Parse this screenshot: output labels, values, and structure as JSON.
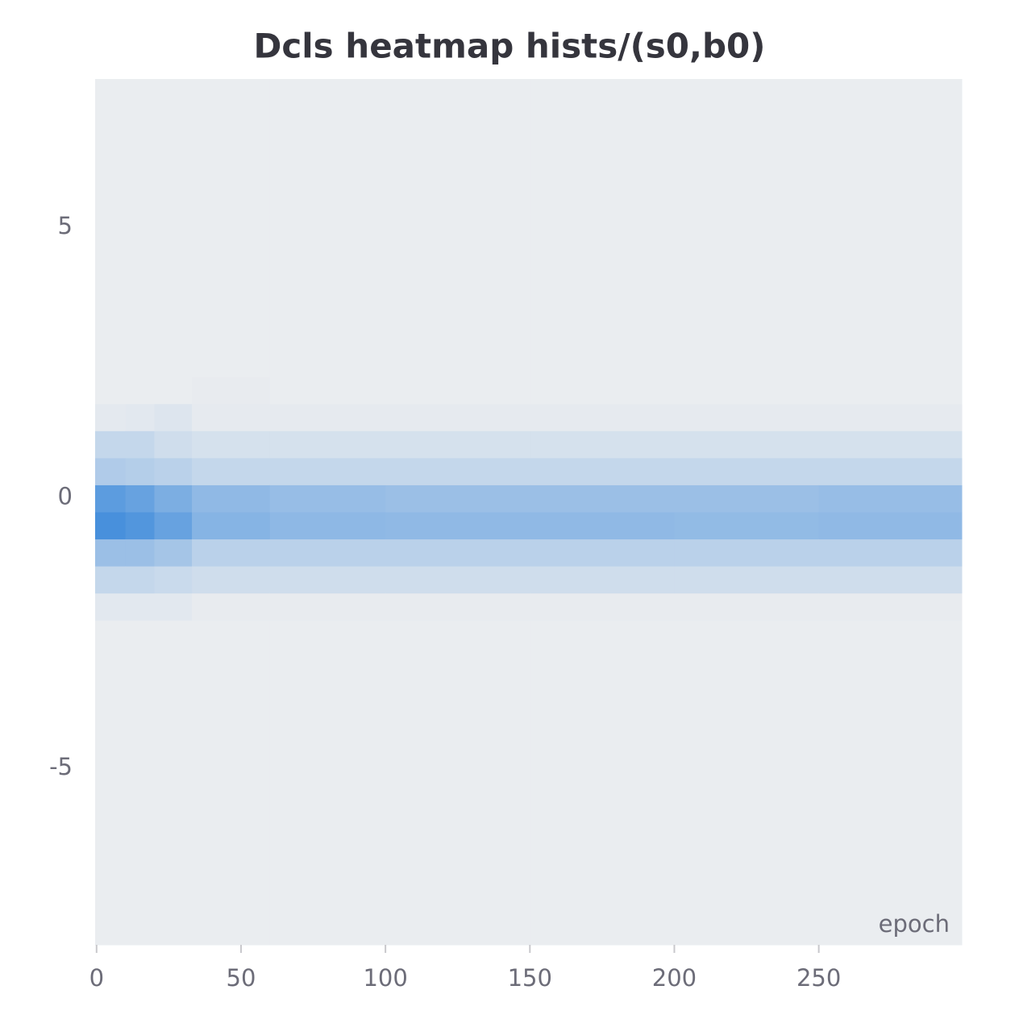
{
  "chart_data": {
    "type": "heatmap",
    "title": "Dcls heatmap hists/(s0,b0)",
    "x_label": "epoch",
    "x_bins": [
      -0.5,
      10,
      20,
      33,
      60,
      100,
      150,
      200,
      250,
      299.5
    ],
    "y_bins": [
      -8.26,
      -7.76,
      -7.26,
      -6.76,
      -6.26,
      -5.76,
      -5.26,
      -4.76,
      -4.26,
      -3.76,
      -3.26,
      -2.76,
      -2.26,
      -1.76,
      -1.26,
      -0.76,
      -0.26,
      0.24,
      0.74,
      1.24,
      1.74,
      2.24,
      2.74,
      3.24,
      3.74,
      4.24,
      4.74,
      5.24,
      5.74,
      6.24,
      6.74,
      7.24,
      7.74
    ],
    "values": [
      [
        0.02,
        0.02,
        0.02,
        0.02,
        0.02,
        0.02,
        0.02,
        0.02,
        0.02,
        0.02,
        0.02,
        0.02,
        0.06,
        0.2,
        0.4,
        0.8,
        0.7,
        0.3,
        0.2,
        0.05,
        0.02,
        0.02,
        0.02,
        0.02,
        0.02,
        0.02,
        0.02,
        0.02,
        0.02,
        0.02,
        0.02,
        0.02
      ],
      [
        0.02,
        0.02,
        0.02,
        0.02,
        0.02,
        0.02,
        0.02,
        0.02,
        0.02,
        0.02,
        0.02,
        0.02,
        0.06,
        0.2,
        0.4,
        0.75,
        0.65,
        0.28,
        0.2,
        0.06,
        0.02,
        0.02,
        0.02,
        0.02,
        0.02,
        0.02,
        0.02,
        0.02,
        0.02,
        0.02,
        0.02,
        0.02
      ],
      [
        0.02,
        0.02,
        0.02,
        0.02,
        0.02,
        0.02,
        0.02,
        0.02,
        0.02,
        0.02,
        0.02,
        0.02,
        0.06,
        0.18,
        0.35,
        0.65,
        0.55,
        0.25,
        0.15,
        0.08,
        0.02,
        0.02,
        0.02,
        0.02,
        0.02,
        0.02,
        0.02,
        0.02,
        0.02,
        0.02,
        0.02,
        0.02
      ],
      [
        0.02,
        0.02,
        0.02,
        0.02,
        0.02,
        0.02,
        0.02,
        0.02,
        0.02,
        0.02,
        0.02,
        0.02,
        0.03,
        0.15,
        0.25,
        0.5,
        0.45,
        0.2,
        0.12,
        0.04,
        0.03,
        0.02,
        0.02,
        0.02,
        0.02,
        0.02,
        0.02,
        0.02,
        0.02,
        0.02,
        0.02,
        0.02
      ],
      [
        0.02,
        0.02,
        0.02,
        0.02,
        0.02,
        0.02,
        0.02,
        0.02,
        0.02,
        0.02,
        0.02,
        0.02,
        0.03,
        0.15,
        0.25,
        0.46,
        0.42,
        0.2,
        0.12,
        0.04,
        0.02,
        0.02,
        0.02,
        0.02,
        0.02,
        0.02,
        0.02,
        0.02,
        0.02,
        0.02,
        0.02,
        0.02
      ],
      [
        0.02,
        0.02,
        0.02,
        0.02,
        0.02,
        0.02,
        0.02,
        0.02,
        0.02,
        0.02,
        0.02,
        0.02,
        0.03,
        0.15,
        0.25,
        0.45,
        0.4,
        0.2,
        0.12,
        0.04,
        0.02,
        0.02,
        0.02,
        0.02,
        0.02,
        0.02,
        0.02,
        0.02,
        0.02,
        0.02,
        0.02,
        0.02
      ],
      [
        0.02,
        0.02,
        0.02,
        0.02,
        0.02,
        0.02,
        0.02,
        0.02,
        0.02,
        0.02,
        0.02,
        0.02,
        0.03,
        0.15,
        0.25,
        0.45,
        0.4,
        0.2,
        0.12,
        0.04,
        0.02,
        0.02,
        0.02,
        0.02,
        0.02,
        0.02,
        0.02,
        0.02,
        0.02,
        0.02,
        0.02,
        0.02
      ],
      [
        0.02,
        0.02,
        0.02,
        0.02,
        0.02,
        0.02,
        0.02,
        0.02,
        0.02,
        0.02,
        0.02,
        0.02,
        0.03,
        0.15,
        0.25,
        0.44,
        0.4,
        0.2,
        0.12,
        0.04,
        0.02,
        0.02,
        0.02,
        0.02,
        0.02,
        0.02,
        0.02,
        0.02,
        0.02,
        0.02,
        0.02,
        0.02
      ],
      [
        0.02,
        0.02,
        0.02,
        0.02,
        0.02,
        0.02,
        0.02,
        0.02,
        0.02,
        0.02,
        0.02,
        0.02,
        0.03,
        0.15,
        0.25,
        0.45,
        0.42,
        0.2,
        0.12,
        0.04,
        0.02,
        0.02,
        0.02,
        0.02,
        0.02,
        0.02,
        0.02,
        0.02,
        0.02,
        0.02,
        0.02,
        0.02
      ]
    ],
    "color_scale": [
      "#eeeff0",
      "#1e78d7"
    ],
    "xlim": [
      -0.5,
      299.5
    ],
    "ylim": [
      -8.26,
      7.74
    ],
    "xticks": [
      0,
      50,
      100,
      150,
      200,
      250
    ],
    "yticks": [
      -5,
      0,
      5
    ]
  }
}
